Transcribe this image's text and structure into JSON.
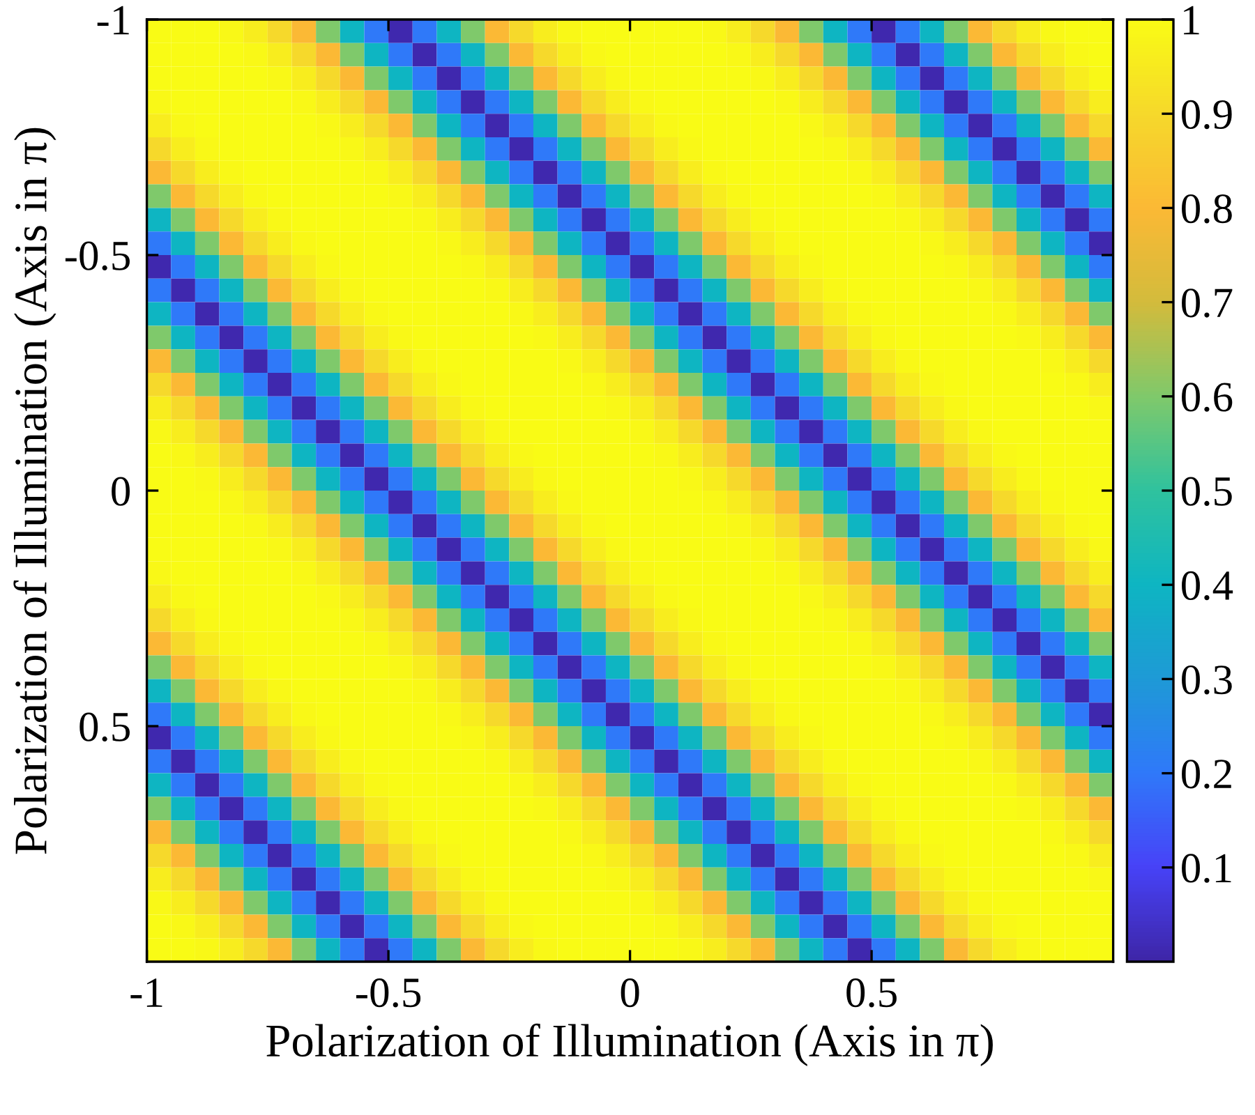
{
  "chart_data": {
    "type": "heatmap",
    "xlabel": "Polarization of Illumination (Axis in π)",
    "ylabel": "Polarization of Illumination (Axis in π)",
    "xlim": [
      -1,
      1
    ],
    "ylim": [
      1,
      -1
    ],
    "xticks": [
      -1,
      -0.5,
      0,
      0.5
    ],
    "yticks": [
      -1,
      -0.5,
      0,
      0.5
    ],
    "clim": [
      0,
      1
    ],
    "cticks": [
      0.1,
      0.2,
      0.3,
      0.4,
      0.5,
      0.6,
      0.7,
      0.8,
      0.9,
      1
    ],
    "cells": [
      [
        1,
        1,
        1,
        0.99,
        0.96,
        0.9,
        0.8,
        0.6,
        0.4,
        0.2,
        0.01,
        0.2,
        0.4,
        0.6,
        0.8,
        0.9,
        0.96,
        0.99,
        1,
        1,
        1,
        1,
        1,
        0.99,
        0.96,
        0.9,
        0.8,
        0.6,
        0.4,
        0.2,
        0.01,
        0.2,
        0.4,
        0.6,
        0.8,
        0.9,
        0.96,
        0.99,
        1,
        1
      ],
      [
        1,
        1,
        1,
        1,
        0.99,
        0.96,
        0.9,
        0.8,
        0.6,
        0.4,
        0.2,
        0.01,
        0.2,
        0.4,
        0.6,
        0.8,
        0.9,
        0.96,
        0.99,
        1,
        1,
        1,
        1,
        1,
        0.99,
        0.96,
        0.9,
        0.8,
        0.6,
        0.4,
        0.2,
        0.01,
        0.2,
        0.4,
        0.6,
        0.8,
        0.9,
        0.96,
        0.99,
        1
      ],
      [
        1,
        1,
        1,
        1,
        1,
        0.99,
        0.96,
        0.9,
        0.8,
        0.6,
        0.4,
        0.2,
        0.01,
        0.2,
        0.4,
        0.6,
        0.8,
        0.9,
        0.96,
        0.99,
        1,
        1,
        1,
        1,
        1,
        0.99,
        0.96,
        0.9,
        0.8,
        0.6,
        0.4,
        0.2,
        0.01,
        0.2,
        0.4,
        0.6,
        0.8,
        0.9,
        0.96,
        0.99
      ],
      [
        0.99,
        1,
        1,
        1,
        1,
        1,
        0.99,
        0.96,
        0.9,
        0.8,
        0.6,
        0.4,
        0.2,
        0.01,
        0.2,
        0.4,
        0.6,
        0.8,
        0.9,
        0.96,
        0.99,
        1,
        1,
        1,
        1,
        1,
        0.99,
        0.96,
        0.9,
        0.8,
        0.6,
        0.4,
        0.2,
        0.01,
        0.2,
        0.4,
        0.6,
        0.8,
        0.9,
        0.96
      ],
      [
        0.96,
        0.99,
        1,
        1,
        1,
        1,
        1,
        0.99,
        0.96,
        0.9,
        0.8,
        0.6,
        0.4,
        0.2,
        0.01,
        0.2,
        0.4,
        0.6,
        0.8,
        0.9,
        0.96,
        0.99,
        1,
        1,
        1,
        1,
        1,
        0.99,
        0.96,
        0.9,
        0.8,
        0.6,
        0.4,
        0.2,
        0.01,
        0.2,
        0.4,
        0.6,
        0.8,
        0.9
      ],
      [
        0.9,
        0.96,
        0.99,
        1,
        1,
        1,
        1,
        1,
        0.99,
        0.96,
        0.9,
        0.8,
        0.6,
        0.4,
        0.2,
        0.01,
        0.2,
        0.4,
        0.6,
        0.8,
        0.9,
        0.96,
        0.99,
        1,
        1,
        1,
        1,
        1,
        0.99,
        0.96,
        0.9,
        0.8,
        0.6,
        0.4,
        0.2,
        0.01,
        0.2,
        0.4,
        0.6,
        0.8
      ],
      [
        0.8,
        0.9,
        0.96,
        0.99,
        1,
        1,
        1,
        1,
        1,
        0.99,
        0.96,
        0.9,
        0.8,
        0.6,
        0.4,
        0.2,
        0.01,
        0.2,
        0.4,
        0.6,
        0.8,
        0.9,
        0.96,
        0.99,
        1,
        1,
        1,
        1,
        1,
        0.99,
        0.96,
        0.9,
        0.8,
        0.6,
        0.4,
        0.2,
        0.01,
        0.2,
        0.4,
        0.6
      ],
      [
        0.6,
        0.8,
        0.9,
        0.96,
        0.99,
        1,
        1,
        1,
        1,
        1,
        0.99,
        0.96,
        0.9,
        0.8,
        0.6,
        0.4,
        0.2,
        0.01,
        0.2,
        0.4,
        0.6,
        0.8,
        0.9,
        0.96,
        0.99,
        1,
        1,
        1,
        1,
        1,
        0.99,
        0.96,
        0.9,
        0.8,
        0.6,
        0.4,
        0.2,
        0.01,
        0.2,
        0.4
      ],
      [
        0.4,
        0.6,
        0.8,
        0.9,
        0.96,
        0.99,
        1,
        1,
        1,
        1,
        1,
        0.99,
        0.96,
        0.9,
        0.8,
        0.6,
        0.4,
        0.2,
        0.01,
        0.2,
        0.4,
        0.6,
        0.8,
        0.9,
        0.96,
        0.99,
        1,
        1,
        1,
        1,
        1,
        0.99,
        0.96,
        0.9,
        0.8,
        0.6,
        0.4,
        0.2,
        0.01,
        0.2
      ],
      [
        0.2,
        0.4,
        0.6,
        0.8,
        0.9,
        0.96,
        0.99,
        1,
        1,
        1,
        1,
        1,
        0.99,
        0.96,
        0.9,
        0.8,
        0.6,
        0.4,
        0.2,
        0.01,
        0.2,
        0.4,
        0.6,
        0.8,
        0.9,
        0.96,
        0.99,
        1,
        1,
        1,
        1,
        1,
        0.99,
        0.96,
        0.9,
        0.8,
        0.6,
        0.4,
        0.2,
        0.01
      ],
      [
        0.01,
        0.2,
        0.4,
        0.6,
        0.8,
        0.9,
        0.96,
        0.99,
        1,
        1,
        1,
        1,
        1,
        0.99,
        0.96,
        0.9,
        0.8,
        0.6,
        0.4,
        0.2,
        0.01,
        0.2,
        0.4,
        0.6,
        0.8,
        0.9,
        0.96,
        0.99,
        1,
        1,
        1,
        1,
        1,
        0.99,
        0.96,
        0.9,
        0.8,
        0.6,
        0.4,
        0.2
      ],
      [
        0.2,
        0.01,
        0.2,
        0.4,
        0.6,
        0.8,
        0.9,
        0.96,
        0.99,
        1,
        1,
        1,
        1,
        1,
        0.99,
        0.96,
        0.9,
        0.8,
        0.6,
        0.4,
        0.2,
        0.01,
        0.2,
        0.4,
        0.6,
        0.8,
        0.9,
        0.96,
        0.99,
        1,
        1,
        1,
        1,
        1,
        0.99,
        0.96,
        0.9,
        0.8,
        0.6,
        0.4
      ],
      [
        0.4,
        0.2,
        0.01,
        0.2,
        0.4,
        0.6,
        0.8,
        0.9,
        0.96,
        0.99,
        1,
        1,
        1,
        1,
        1,
        0.99,
        0.96,
        0.9,
        0.8,
        0.6,
        0.4,
        0.2,
        0.01,
        0.2,
        0.4,
        0.6,
        0.8,
        0.9,
        0.96,
        0.99,
        1,
        1,
        1,
        1,
        1,
        0.99,
        0.96,
        0.9,
        0.8,
        0.6
      ],
      [
        0.6,
        0.4,
        0.2,
        0.01,
        0.2,
        0.4,
        0.6,
        0.8,
        0.9,
        0.96,
        0.99,
        1,
        1,
        1,
        1,
        1,
        0.99,
        0.96,
        0.9,
        0.8,
        0.6,
        0.4,
        0.2,
        0.01,
        0.2,
        0.4,
        0.6,
        0.8,
        0.9,
        0.96,
        0.99,
        1,
        1,
        1,
        1,
        1,
        0.99,
        0.96,
        0.9,
        0.8
      ],
      [
        0.8,
        0.6,
        0.4,
        0.2,
        0.01,
        0.2,
        0.4,
        0.6,
        0.8,
        0.9,
        0.96,
        0.99,
        1,
        1,
        1,
        1,
        1,
        0.99,
        0.96,
        0.9,
        0.8,
        0.6,
        0.4,
        0.2,
        0.01,
        0.2,
        0.4,
        0.6,
        0.8,
        0.9,
        0.96,
        0.99,
        1,
        1,
        1,
        1,
        1,
        0.99,
        0.96,
        0.9
      ],
      [
        0.9,
        0.8,
        0.6,
        0.4,
        0.2,
        0.01,
        0.2,
        0.4,
        0.6,
        0.8,
        0.9,
        0.96,
        0.99,
        1,
        1,
        1,
        1,
        1,
        0.99,
        0.96,
        0.9,
        0.8,
        0.6,
        0.4,
        0.2,
        0.01,
        0.2,
        0.4,
        0.6,
        0.8,
        0.9,
        0.96,
        0.99,
        1,
        1,
        1,
        1,
        1,
        0.99,
        0.96
      ],
      [
        0.96,
        0.9,
        0.8,
        0.6,
        0.4,
        0.2,
        0.01,
        0.2,
        0.4,
        0.6,
        0.8,
        0.9,
        0.96,
        0.99,
        1,
        1,
        1,
        1,
        1,
        0.99,
        0.96,
        0.9,
        0.8,
        0.6,
        0.4,
        0.2,
        0.01,
        0.2,
        0.4,
        0.6,
        0.8,
        0.9,
        0.96,
        0.99,
        1,
        1,
        1,
        1,
        1,
        0.99
      ],
      [
        0.99,
        0.96,
        0.9,
        0.8,
        0.6,
        0.4,
        0.2,
        0.01,
        0.2,
        0.4,
        0.6,
        0.8,
        0.9,
        0.96,
        0.99,
        1,
        1,
        1,
        1,
        1,
        0.99,
        0.96,
        0.9,
        0.8,
        0.6,
        0.4,
        0.2,
        0.01,
        0.2,
        0.4,
        0.6,
        0.8,
        0.9,
        0.96,
        0.99,
        1,
        1,
        1,
        1,
        1
      ],
      [
        1,
        0.99,
        0.96,
        0.9,
        0.8,
        0.6,
        0.4,
        0.2,
        0.01,
        0.2,
        0.4,
        0.6,
        0.8,
        0.9,
        0.96,
        0.99,
        1,
        1,
        1,
        1,
        1,
        0.99,
        0.96,
        0.9,
        0.8,
        0.6,
        0.4,
        0.2,
        0.01,
        0.2,
        0.4,
        0.6,
        0.8,
        0.9,
        0.96,
        0.99,
        1,
        1,
        1,
        1
      ],
      [
        1,
        1,
        0.99,
        0.96,
        0.9,
        0.8,
        0.6,
        0.4,
        0.2,
        0.01,
        0.2,
        0.4,
        0.6,
        0.8,
        0.9,
        0.96,
        0.99,
        1,
        1,
        1,
        1,
        1,
        0.99,
        0.96,
        0.9,
        0.8,
        0.6,
        0.4,
        0.2,
        0.01,
        0.2,
        0.4,
        0.6,
        0.8,
        0.9,
        0.96,
        0.99,
        1,
        1,
        1
      ],
      [
        1,
        1,
        1,
        0.99,
        0.96,
        0.9,
        0.8,
        0.6,
        0.4,
        0.2,
        0.01,
        0.2,
        0.4,
        0.6,
        0.8,
        0.9,
        0.96,
        0.99,
        1,
        1,
        1,
        1,
        1,
        0.99,
        0.96,
        0.9,
        0.8,
        0.6,
        0.4,
        0.2,
        0.01,
        0.2,
        0.4,
        0.6,
        0.8,
        0.9,
        0.96,
        0.99,
        1,
        1
      ],
      [
        1,
        1,
        1,
        1,
        0.99,
        0.96,
        0.9,
        0.8,
        0.6,
        0.4,
        0.2,
        0.01,
        0.2,
        0.4,
        0.6,
        0.8,
        0.9,
        0.96,
        0.99,
        1,
        1,
        1,
        1,
        1,
        0.99,
        0.96,
        0.9,
        0.8,
        0.6,
        0.4,
        0.2,
        0.01,
        0.2,
        0.4,
        0.6,
        0.8,
        0.9,
        0.96,
        0.99,
        1
      ],
      [
        1,
        1,
        1,
        1,
        1,
        0.99,
        0.96,
        0.9,
        0.8,
        0.6,
        0.4,
        0.2,
        0.01,
        0.2,
        0.4,
        0.6,
        0.8,
        0.9,
        0.96,
        0.99,
        1,
        1,
        1,
        1,
        1,
        0.99,
        0.96,
        0.9,
        0.8,
        0.6,
        0.4,
        0.2,
        0.01,
        0.2,
        0.4,
        0.6,
        0.8,
        0.9,
        0.96,
        0.99
      ],
      [
        0.99,
        1,
        1,
        1,
        1,
        1,
        0.99,
        0.96,
        0.9,
        0.8,
        0.6,
        0.4,
        0.2,
        0.01,
        0.2,
        0.4,
        0.6,
        0.8,
        0.9,
        0.96,
        0.99,
        1,
        1,
        1,
        1,
        1,
        0.99,
        0.96,
        0.9,
        0.8,
        0.6,
        0.4,
        0.2,
        0.01,
        0.2,
        0.4,
        0.6,
        0.8,
        0.9,
        0.96
      ],
      [
        0.96,
        0.99,
        1,
        1,
        1,
        1,
        1,
        0.99,
        0.96,
        0.9,
        0.8,
        0.6,
        0.4,
        0.2,
        0.01,
        0.2,
        0.4,
        0.6,
        0.8,
        0.9,
        0.96,
        0.99,
        1,
        1,
        1,
        1,
        1,
        0.99,
        0.96,
        0.9,
        0.8,
        0.6,
        0.4,
        0.2,
        0.01,
        0.2,
        0.4,
        0.6,
        0.8,
        0.9
      ],
      [
        0.9,
        0.96,
        0.99,
        1,
        1,
        1,
        1,
        1,
        0.99,
        0.96,
        0.9,
        0.8,
        0.6,
        0.4,
        0.2,
        0.01,
        0.2,
        0.4,
        0.6,
        0.8,
        0.9,
        0.96,
        0.99,
        1,
        1,
        1,
        1,
        1,
        0.99,
        0.96,
        0.9,
        0.8,
        0.6,
        0.4,
        0.2,
        0.01,
        0.2,
        0.4,
        0.6,
        0.8
      ],
      [
        0.8,
        0.9,
        0.96,
        0.99,
        1,
        1,
        1,
        1,
        1,
        0.99,
        0.96,
        0.9,
        0.8,
        0.6,
        0.4,
        0.2,
        0.01,
        0.2,
        0.4,
        0.6,
        0.8,
        0.9,
        0.96,
        0.99,
        1,
        1,
        1,
        1,
        1,
        0.99,
        0.96,
        0.9,
        0.8,
        0.6,
        0.4,
        0.2,
        0.01,
        0.2,
        0.4,
        0.6
      ],
      [
        0.6,
        0.8,
        0.9,
        0.96,
        0.99,
        1,
        1,
        1,
        1,
        1,
        0.99,
        0.96,
        0.9,
        0.8,
        0.6,
        0.4,
        0.2,
        0.01,
        0.2,
        0.4,
        0.6,
        0.8,
        0.9,
        0.96,
        0.99,
        1,
        1,
        1,
        1,
        1,
        0.99,
        0.96,
        0.9,
        0.8,
        0.6,
        0.4,
        0.2,
        0.01,
        0.2,
        0.4
      ],
      [
        0.4,
        0.6,
        0.8,
        0.9,
        0.96,
        0.99,
        1,
        1,
        1,
        1,
        1,
        0.99,
        0.96,
        0.9,
        0.8,
        0.6,
        0.4,
        0.2,
        0.01,
        0.2,
        0.4,
        0.6,
        0.8,
        0.9,
        0.96,
        0.99,
        1,
        1,
        1,
        1,
        1,
        0.99,
        0.96,
        0.9,
        0.8,
        0.6,
        0.4,
        0.2,
        0.01,
        0.2
      ],
      [
        0.2,
        0.4,
        0.6,
        0.8,
        0.9,
        0.96,
        0.99,
        1,
        1,
        1,
        1,
        1,
        0.99,
        0.96,
        0.9,
        0.8,
        0.6,
        0.4,
        0.2,
        0.01,
        0.2,
        0.4,
        0.6,
        0.8,
        0.9,
        0.96,
        0.99,
        1,
        1,
        1,
        1,
        1,
        0.99,
        0.96,
        0.9,
        0.8,
        0.6,
        0.4,
        0.2,
        0.01
      ],
      [
        0.01,
        0.2,
        0.4,
        0.6,
        0.8,
        0.9,
        0.96,
        0.99,
        1,
        1,
        1,
        1,
        1,
        0.99,
        0.96,
        0.9,
        0.8,
        0.6,
        0.4,
        0.2,
        0.01,
        0.2,
        0.4,
        0.6,
        0.8,
        0.9,
        0.96,
        0.99,
        1,
        1,
        1,
        1,
        1,
        0.99,
        0.96,
        0.9,
        0.8,
        0.6,
        0.4,
        0.2
      ],
      [
        0.2,
        0.01,
        0.2,
        0.4,
        0.6,
        0.8,
        0.9,
        0.96,
        0.99,
        1,
        1,
        1,
        1,
        1,
        0.99,
        0.96,
        0.9,
        0.8,
        0.6,
        0.4,
        0.2,
        0.01,
        0.2,
        0.4,
        0.6,
        0.8,
        0.9,
        0.96,
        0.99,
        1,
        1,
        1,
        1,
        1,
        0.99,
        0.96,
        0.9,
        0.8,
        0.6,
        0.4
      ],
      [
        0.4,
        0.2,
        0.01,
        0.2,
        0.4,
        0.6,
        0.8,
        0.9,
        0.96,
        0.99,
        1,
        1,
        1,
        1,
        1,
        0.99,
        0.96,
        0.9,
        0.8,
        0.6,
        0.4,
        0.2,
        0.01,
        0.2,
        0.4,
        0.6,
        0.8,
        0.9,
        0.96,
        0.99,
        1,
        1,
        1,
        1,
        1,
        0.99,
        0.96,
        0.9,
        0.8,
        0.6
      ],
      [
        0.6,
        0.4,
        0.2,
        0.01,
        0.2,
        0.4,
        0.6,
        0.8,
        0.9,
        0.96,
        0.99,
        1,
        1,
        1,
        1,
        1,
        0.99,
        0.96,
        0.9,
        0.8,
        0.6,
        0.4,
        0.2,
        0.01,
        0.2,
        0.4,
        0.6,
        0.8,
        0.9,
        0.96,
        0.99,
        1,
        1,
        1,
        1,
        1,
        0.99,
        0.96,
        0.9,
        0.8
      ],
      [
        0.8,
        0.6,
        0.4,
        0.2,
        0.01,
        0.2,
        0.4,
        0.6,
        0.8,
        0.9,
        0.96,
        0.99,
        1,
        1,
        1,
        1,
        1,
        0.99,
        0.96,
        0.9,
        0.8,
        0.6,
        0.4,
        0.2,
        0.01,
        0.2,
        0.4,
        0.6,
        0.8,
        0.9,
        0.96,
        0.99,
        1,
        1,
        1,
        1,
        1,
        0.99,
        0.96,
        0.9
      ],
      [
        0.9,
        0.8,
        0.6,
        0.4,
        0.2,
        0.01,
        0.2,
        0.4,
        0.6,
        0.8,
        0.9,
        0.96,
        0.99,
        1,
        1,
        1,
        1,
        1,
        0.99,
        0.96,
        0.9,
        0.8,
        0.6,
        0.4,
        0.2,
        0.01,
        0.2,
        0.4,
        0.6,
        0.8,
        0.9,
        0.96,
        0.99,
        1,
        1,
        1,
        1,
        1,
        0.99,
        0.96
      ],
      [
        0.96,
        0.9,
        0.8,
        0.6,
        0.4,
        0.2,
        0.01,
        0.2,
        0.4,
        0.6,
        0.8,
        0.9,
        0.96,
        0.99,
        1,
        1,
        1,
        1,
        1,
        0.99,
        0.96,
        0.9,
        0.8,
        0.6,
        0.4,
        0.2,
        0.01,
        0.2,
        0.4,
        0.6,
        0.8,
        0.9,
        0.96,
        0.99,
        1,
        1,
        1,
        1,
        1,
        0.99
      ],
      [
        0.99,
        0.96,
        0.9,
        0.8,
        0.6,
        0.4,
        0.2,
        0.01,
        0.2,
        0.4,
        0.6,
        0.8,
        0.9,
        0.96,
        0.99,
        1,
        1,
        1,
        1,
        1,
        0.99,
        0.96,
        0.9,
        0.8,
        0.6,
        0.4,
        0.2,
        0.01,
        0.2,
        0.4,
        0.6,
        0.8,
        0.9,
        0.96,
        0.99,
        1,
        1,
        1,
        1,
        1
      ],
      [
        1,
        0.99,
        0.96,
        0.9,
        0.8,
        0.6,
        0.4,
        0.2,
        0.01,
        0.2,
        0.4,
        0.6,
        0.8,
        0.9,
        0.96,
        0.99,
        1,
        1,
        1,
        1,
        1,
        0.99,
        0.96,
        0.9,
        0.8,
        0.6,
        0.4,
        0.2,
        0.01,
        0.2,
        0.4,
        0.6,
        0.8,
        0.9,
        0.96,
        0.99,
        1,
        1,
        1,
        1
      ],
      [
        1,
        1,
        0.99,
        0.96,
        0.9,
        0.8,
        0.6,
        0.4,
        0.2,
        0.01,
        0.2,
        0.4,
        0.6,
        0.8,
        0.9,
        0.96,
        0.99,
        1,
        1,
        1,
        1,
        1,
        0.99,
        0.96,
        0.9,
        0.8,
        0.6,
        0.4,
        0.2,
        0.01,
        0.2,
        0.4,
        0.6,
        0.8,
        0.9,
        0.96,
        0.99,
        1,
        1,
        1
      ]
    ]
  }
}
